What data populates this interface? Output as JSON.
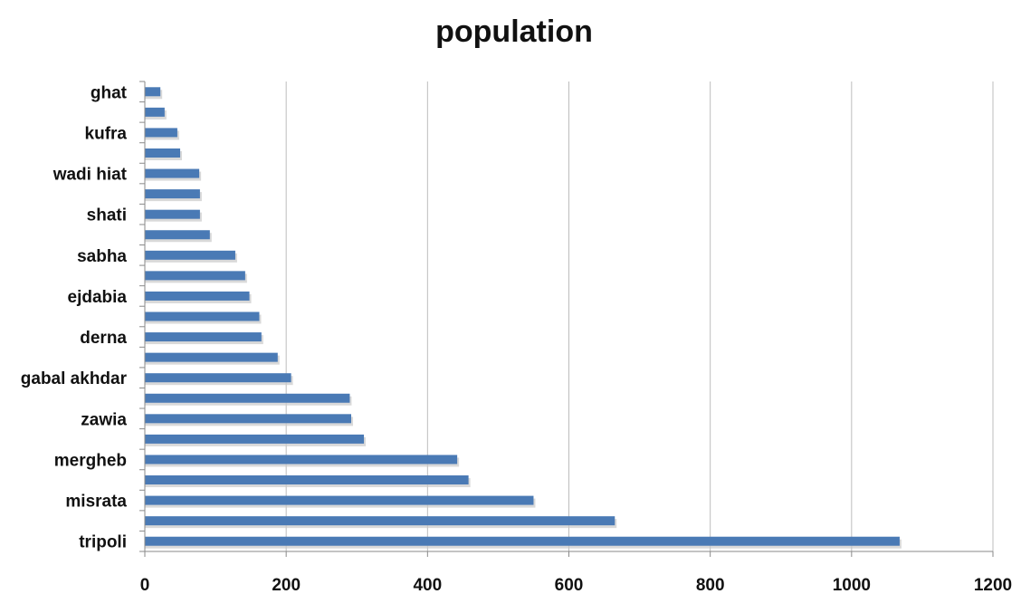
{
  "chart_data": {
    "type": "bar",
    "orientation": "horizontal",
    "title": "population",
    "xlabel": "",
    "ylabel": "",
    "xlim": [
      0,
      1200
    ],
    "x_ticks": [
      0,
      200,
      400,
      600,
      800,
      1000,
      1200
    ],
    "grid": "vertical",
    "legend": "none",
    "bar_color": "#4a7ab5",
    "categories": [
      "tripoli",
      "",
      "misrata",
      "",
      "mergheb",
      "",
      "zawia",
      "",
      "gabal akhdar",
      "",
      "derna",
      "",
      "ejdabia",
      "",
      "sabha",
      "",
      "shati",
      "",
      "wadi hiat",
      "",
      "kufra",
      "",
      "ghat"
    ],
    "values": [
      1068,
      665,
      550,
      458,
      442,
      310,
      292,
      290,
      207,
      188,
      165,
      162,
      148,
      142,
      128,
      92,
      78,
      78,
      77,
      50,
      46,
      28,
      22
    ]
  }
}
